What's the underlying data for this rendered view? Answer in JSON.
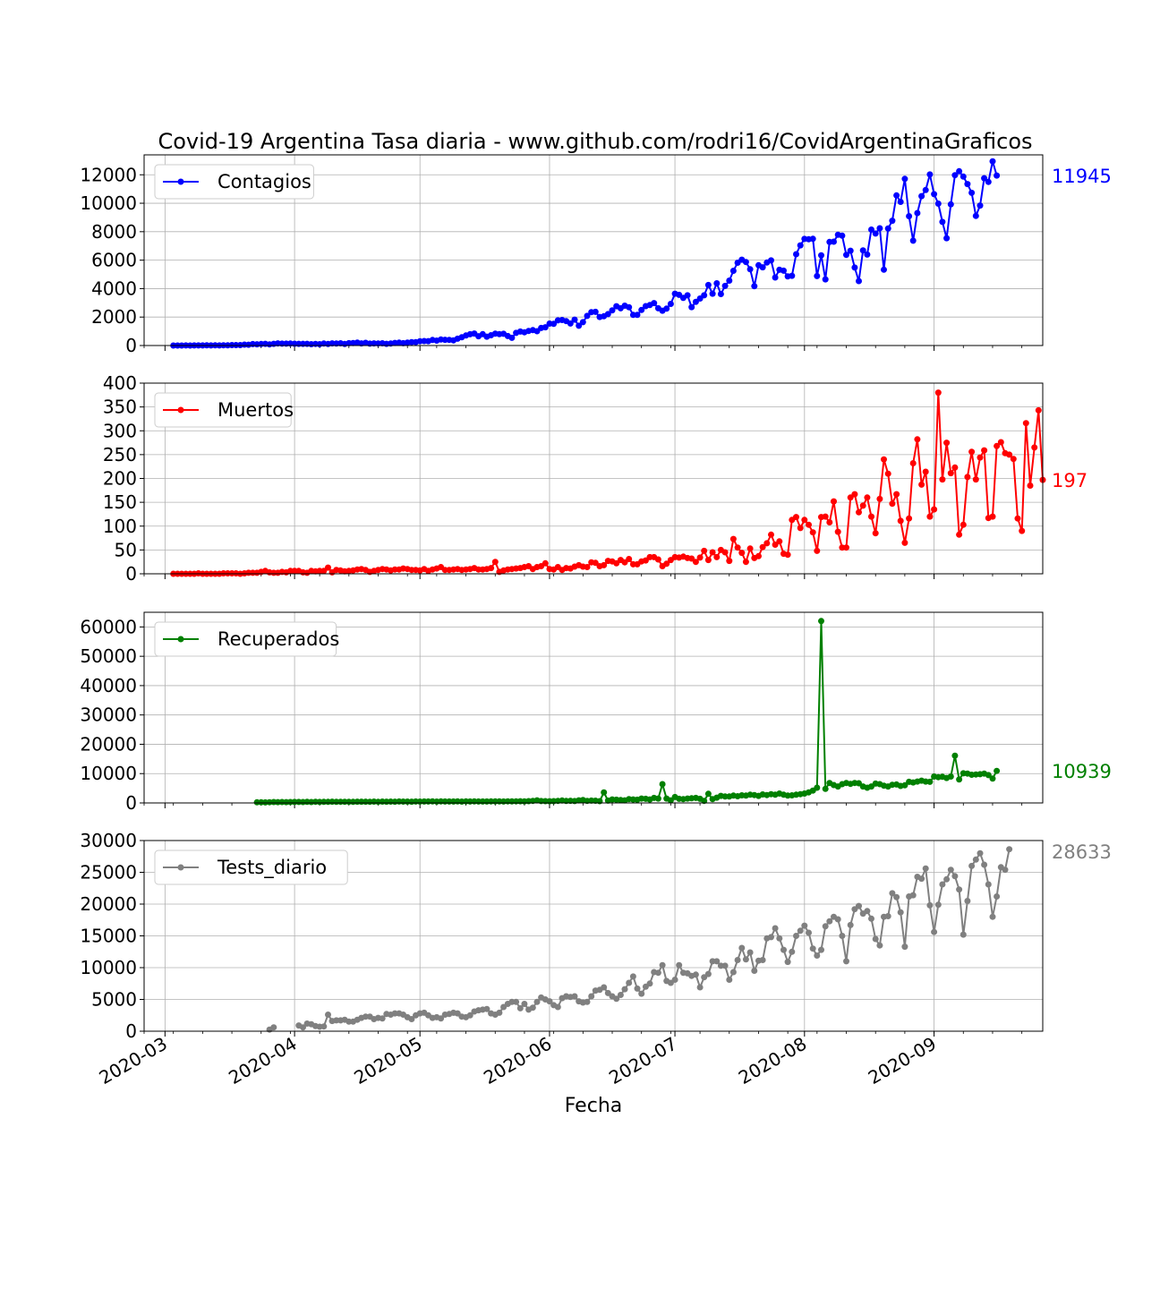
{
  "chart_data": {
    "type": "line",
    "title": "Covid-19 Argentina Tasa diaria - www.github.com/rodri16/CovidArgentinaGraficos",
    "xlabel": "Fecha",
    "x_ticks": [
      "2020-03",
      "2020-04",
      "2020-05",
      "2020-06",
      "2020-07",
      "2020-08",
      "2020-09"
    ],
    "x_range": [
      "2020-02-25",
      "2020-09-27"
    ],
    "grid": true,
    "legend_placement": "top-left",
    "panels": [
      {
        "name": "Contagios",
        "color": "#0000ff",
        "last_value_label": "11945",
        "ylim": [
          0,
          13400
        ],
        "yticks": [
          0,
          2000,
          4000,
          6000,
          8000,
          10000,
          12000
        ],
        "start_date": "2020-03-03",
        "values": [
          1,
          1,
          2,
          4,
          2,
          5,
          5,
          7,
          12,
          8,
          11,
          9,
          19,
          14,
          31,
          33,
          30,
          63,
          55,
          100,
          85,
          110,
          118,
          80,
          120,
          150,
          135,
          130,
          140,
          125,
          120,
          121,
          120,
          95,
          115,
          95,
          140,
          110,
          150,
          140,
          160,
          110,
          165,
          175,
          205,
          150,
          190,
          135,
          150,
          145,
          160,
          120,
          140,
          180,
          200,
          165,
          210,
          240,
          240,
          305,
          315,
          310,
          390,
          345,
          420,
          405,
          395,
          365,
          480,
          580,
          705,
          795,
          840,
          655,
          800,
          625,
          725,
          835,
          800,
          825,
          670,
          540,
          890,
          980,
          930,
          1025,
          1085,
          1005,
          1235,
          1285,
          1540,
          1525,
          1765,
          1795,
          1720,
          1550,
          1815,
          1390,
          1640,
          2085,
          2345,
          2365,
          2010,
          2060,
          2210,
          2475,
          2760,
          2620,
          2800,
          2690,
          2150,
          2150,
          2500,
          2765,
          2845,
          2980,
          2620,
          2450,
          2595,
          2925,
          3640,
          3560,
          3350,
          3530,
          2700,
          3070,
          3300,
          3530,
          4250,
          3640,
          4370,
          3620,
          4190,
          4560,
          5250,
          5820,
          6030,
          5870,
          5360,
          4170,
          5640,
          5500,
          5830,
          5980,
          4780,
          5320,
          5260,
          4855,
          4900,
          6420,
          7040,
          7490,
          7470,
          7500,
          4880,
          6340,
          4650,
          7280,
          7300,
          7780,
          7720,
          6370,
          6660,
          5480,
          4530,
          6690,
          6390,
          8150,
          7870,
          8240,
          5330,
          8220,
          8770,
          10550,
          10100,
          11715,
          9090,
          7370,
          9310,
          10500,
          10930,
          12025,
          10640,
          9970,
          8690,
          7540,
          9920,
          11970,
          12250,
          11870,
          11350,
          10730,
          9110,
          9840,
          11755,
          11500,
          12950,
          11945
        ]
      },
      {
        "name": "Muertos",
        "color": "#ff0000",
        "last_value_label": "197",
        "ylim": [
          0,
          400
        ],
        "yticks": [
          0,
          50,
          100,
          150,
          200,
          250,
          300,
          350,
          400
        ],
        "start_date": "2020-03-03",
        "values": [
          0,
          0,
          0,
          0,
          0,
          0,
          1,
          0,
          0,
          0,
          0,
          0,
          1,
          1,
          1,
          1,
          0,
          1,
          2,
          2,
          2,
          4,
          6,
          3,
          2,
          2,
          4,
          3,
          6,
          6,
          6,
          3,
          2,
          6,
          5,
          6,
          6,
          13,
          3,
          8,
          7,
          5,
          6,
          7,
          9,
          10,
          8,
          4,
          6,
          8,
          10,
          9,
          7,
          9,
          9,
          11,
          10,
          8,
          8,
          7,
          10,
          6,
          9,
          11,
          14,
          8,
          8,
          9,
          10,
          8,
          9,
          10,
          12,
          9,
          9,
          10,
          12,
          25,
          4,
          7,
          9,
          10,
          11,
          12,
          14,
          16,
          10,
          14,
          16,
          22,
          10,
          9,
          14,
          8,
          12,
          11,
          15,
          18,
          15,
          14,
          24,
          23,
          16,
          18,
          27,
          26,
          22,
          29,
          24,
          31,
          20,
          20,
          26,
          28,
          35,
          35,
          30,
          16,
          21,
          29,
          35,
          34,
          36,
          33,
          32,
          25,
          34,
          48,
          29,
          45,
          35,
          50,
          45,
          27,
          73,
          55,
          44,
          25,
          53,
          33,
          37,
          56,
          64,
          82,
          61,
          68,
          42,
          40,
          113,
          119,
          96,
          113,
          103,
          87,
          48,
          119,
          120,
          108,
          152,
          88,
          55,
          55,
          160,
          167,
          129,
          143,
          160,
          120,
          85,
          157,
          240,
          210,
          147,
          167,
          111,
          65,
          116,
          232,
          282,
          187,
          214,
          120,
          135,
          380,
          198,
          275,
          211,
          223,
          82,
          103,
          203,
          256,
          198,
          244,
          259,
          117,
          120,
          268,
          276,
          253,
          250,
          241,
          116,
          90,
          316,
          185,
          265,
          343,
          197
        ]
      },
      {
        "name": "Recuperados",
        "color": "#008000",
        "last_value_label": "10939",
        "ylim": [
          0,
          65000
        ],
        "yticks": [
          0,
          10000,
          20000,
          30000,
          40000,
          50000,
          60000
        ],
        "start_date": "2020-03-23",
        "values": [
          200,
          220,
          180,
          250,
          300,
          280,
          320,
          260,
          310,
          330,
          350,
          300,
          370,
          320,
          390,
          340,
          380,
          360,
          420,
          380,
          410,
          390,
          400,
          370,
          430,
          420,
          440,
          400,
          450,
          410,
          460,
          420,
          470,
          440,
          480,
          450,
          460,
          430,
          490,
          470,
          500,
          480,
          510,
          470,
          520,
          480,
          500,
          490,
          510,
          470,
          520,
          500,
          510,
          490,
          500,
          480,
          520,
          510,
          530,
          490,
          540,
          520,
          560,
          580,
          520,
          600,
          700,
          900,
          650,
          600,
          580,
          620,
          700,
          820,
          680,
          720,
          650,
          900,
          1000,
          700,
          800,
          750,
          600,
          3600,
          800,
          1200,
          1100,
          1000,
          900,
          1300,
          1200,
          1100,
          1500,
          1400,
          1200,
          1700,
          1500,
          6400,
          1500,
          900,
          2000,
          1400,
          1300,
          1500,
          1600,
          1700,
          1400,
          700,
          3100,
          1300,
          1800,
          2400,
          2200,
          2200,
          2500,
          2300,
          2600,
          2500,
          2800,
          2700,
          2400,
          2900,
          2700,
          3000,
          2800,
          3200,
          2800,
          2500,
          2600,
          2800,
          3000,
          3200,
          3600,
          4200,
          5200,
          62000,
          4800,
          6800,
          6100,
          5600,
          6400,
          6800,
          6500,
          6800,
          6700,
          5600,
          5200,
          5600,
          6600,
          6400,
          5900,
          5600,
          6200,
          6300,
          5800,
          6000,
          7200,
          7000,
          7300,
          7600,
          7300,
          7200,
          9000,
          8800,
          8900,
          8500,
          9000,
          16100,
          8000,
          10100,
          10000,
          9600,
          9700,
          9800,
          10000,
          9500,
          8300,
          10939
        ]
      },
      {
        "name": "Tests_diario",
        "color": "#808080",
        "last_value_label": "28633",
        "ylim": [
          0,
          30000
        ],
        "yticks": [
          0,
          5000,
          10000,
          15000,
          20000,
          25000,
          30000
        ],
        "start_date": "2020-03-26",
        "values": [
          250,
          600,
          null,
          null,
          null,
          null,
          null,
          900,
          600,
          1200,
          1100,
          800,
          700,
          750,
          2600,
          1600,
          1700,
          1700,
          1800,
          1500,
          1500,
          1800,
          2100,
          2300,
          2300,
          1900,
          2100,
          2000,
          2700,
          2600,
          2800,
          2800,
          2600,
          2200,
          1900,
          2500,
          2800,
          2900,
          2500,
          2100,
          2200,
          2000,
          2600,
          2700,
          2900,
          2800,
          2300,
          2200,
          2500,
          3100,
          3300,
          3400,
          3500,
          2800,
          2600,
          2900,
          3800,
          4300,
          4600,
          4600,
          3600,
          4300,
          3400,
          3700,
          4600,
          5300,
          5000,
          4700,
          4100,
          3800,
          5200,
          5500,
          5400,
          5500,
          4700,
          4500,
          4600,
          5500,
          6400,
          6500,
          6900,
          6000,
          5500,
          5100,
          5700,
          6600,
          7600,
          8600,
          6700,
          5900,
          7000,
          7500,
          9300,
          9200,
          10400,
          7900,
          7600,
          8100,
          10400,
          9200,
          9100,
          8700,
          8900,
          6900,
          8500,
          9000,
          11000,
          11000,
          10300,
          10300,
          8100,
          9300,
          11200,
          13100,
          11300,
          12400,
          9500,
          11100,
          11200,
          14600,
          14800,
          16200,
          14600,
          12800,
          10900,
          12500,
          15000,
          15800,
          16600,
          15500,
          13000,
          11900,
          12800,
          16500,
          17300,
          18000,
          17600,
          15000,
          11000,
          16700,
          19200,
          19700,
          18500,
          18900,
          17700,
          14500,
          13500,
          18000,
          18100,
          21700,
          21100,
          18700,
          13300,
          21200,
          21400,
          24300,
          24000,
          25600,
          19800,
          15600,
          19900,
          23100,
          23900,
          25400,
          24400,
          22300,
          15200,
          20500,
          26000,
          27000,
          28000,
          26200,
          23100,
          18000,
          21200,
          25800,
          25400,
          28633
        ]
      }
    ]
  }
}
